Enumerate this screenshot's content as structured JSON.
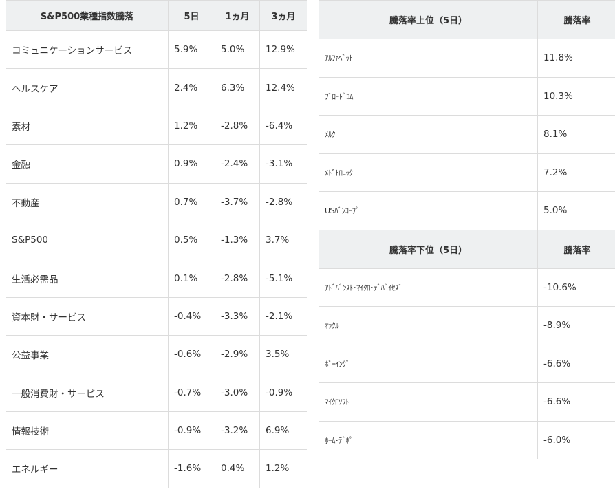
{
  "sector_table": {
    "headers": [
      "S&P500業種指数騰落",
      "5日",
      "1ヵ月",
      "3ヵ月"
    ],
    "rows": [
      {
        "sector": "コミュニケーションサービス",
        "d5": "5.9%",
        "m1": "5.0%",
        "m3": "12.9%"
      },
      {
        "sector": "ヘルスケア",
        "d5": "2.4%",
        "m1": "6.3%",
        "m3": "12.4%"
      },
      {
        "sector": "素材",
        "d5": "1.2%",
        "m1": "-2.8%",
        "m3": "-6.4%"
      },
      {
        "sector": "金融",
        "d5": "0.9%",
        "m1": "-2.4%",
        "m3": "-3.1%"
      },
      {
        "sector": "不動産",
        "d5": "0.7%",
        "m1": "-3.7%",
        "m3": "-2.8%"
      },
      {
        "sector": "S&P500",
        "d5": "0.5%",
        "m1": "-1.3%",
        "m3": "3.7%"
      },
      {
        "sector": "生活必需品",
        "d5": "0.1%",
        "m1": "-2.8%",
        "m3": "-5.1%"
      },
      {
        "sector": "資本財・サービス",
        "d5": "-0.4%",
        "m1": "-3.3%",
        "m3": "-2.1%"
      },
      {
        "sector": "公益事業",
        "d5": "-0.6%",
        "m1": "-2.9%",
        "m3": "3.5%"
      },
      {
        "sector": "一般消費財・サービス",
        "d5": "-0.7%",
        "m1": "-3.0%",
        "m3": "-0.9%"
      },
      {
        "sector": "情報技術",
        "d5": "-0.9%",
        "m1": "-3.2%",
        "m3": "6.9%"
      },
      {
        "sector": "エネルギー",
        "d5": "-1.6%",
        "m1": "0.4%",
        "m3": "1.2%"
      }
    ]
  },
  "rank_table": {
    "top_headers": [
      "騰落率上位（5日）",
      "騰落率"
    ],
    "top_rows": [
      {
        "name": "ｱﾙﾌｧﾍﾞｯﾄ",
        "value": "11.8%"
      },
      {
        "name": "ﾌﾞﾛｰﾄﾞｺﾑ",
        "value": "10.3%"
      },
      {
        "name": "ﾒﾙｸ",
        "value": "8.1%"
      },
      {
        "name": "ﾒﾄﾞﾄﾛﾆｯｸ",
        "value": "7.2%"
      },
      {
        "name": "USﾊﾞﾝｺｰﾌﾟ",
        "value": "5.0%"
      }
    ],
    "bottom_headers": [
      "騰落率下位（5日）",
      "騰落率"
    ],
    "bottom_rows": [
      {
        "name": "ｱﾄﾞﾊﾞﾝｽﾄ･ﾏｲｸﾛ･ﾃﾞﾊﾞｲｾｽﾞ",
        "value": "-10.6%"
      },
      {
        "name": "ｵﾗｸﾙ",
        "value": "-8.9%"
      },
      {
        "name": "ﾎﾞｰｲﾝｸﾞ",
        "value": "-6.6%"
      },
      {
        "name": "ﾏｲｸﾛｿﾌﾄ",
        "value": "-6.6%"
      },
      {
        "name": "ﾎｰﾑ･ﾃﾞﾎﾟ",
        "value": "-6.0%"
      }
    ]
  }
}
